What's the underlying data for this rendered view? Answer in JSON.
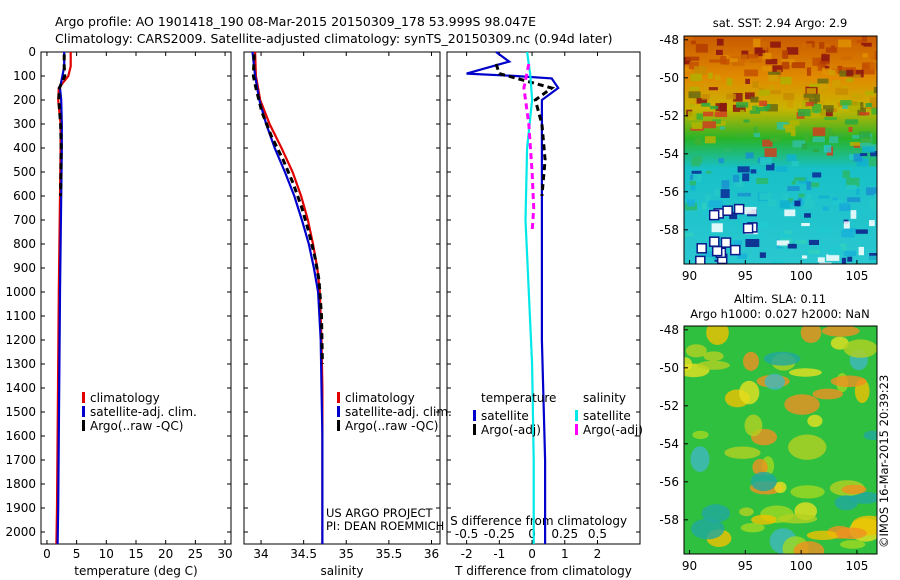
{
  "header": {
    "line1": "Argo profile: AO 1901418_190 08-Mar-2015 20150309_178 53.999S 98.047E",
    "line2": "Climatology: CARS2009. Satellite-adjusted climatology: synTS_20150309.nc (0.94d later)"
  },
  "colors": {
    "red": "#e00000",
    "blue": "#0000cc",
    "black": "#000000",
    "cyan": "#00e8e8",
    "magenta": "#ff00ff"
  },
  "chart_data": [
    {
      "type": "line",
      "panel": "temperature",
      "xlabel": "temperature (deg C)",
      "xlim": [
        -1,
        31
      ],
      "ylim": [
        2050,
        0
      ],
      "xticks": [
        "0",
        "5",
        "10",
        "15",
        "20",
        "25",
        "30"
      ],
      "yticks": [
        "0",
        "100",
        "200",
        "300",
        "400",
        "500",
        "600",
        "700",
        "800",
        "900",
        "1000",
        "1100",
        "1200",
        "1300",
        "1400",
        "1500",
        "1600",
        "1700",
        "1800",
        "1900",
        "2000"
      ],
      "legend": [
        "climatology",
        "satellite-adj. clim.",
        "Argo(..raw -QC)"
      ],
      "series": [
        {
          "name": "climatology",
          "color": "red",
          "x": [
            4.0,
            4.0,
            3.6,
            2.0,
            1.9,
            2.1,
            2.3,
            2.3,
            2.2,
            2.1,
            2.0,
            1.9,
            1.8,
            1.7,
            1.6
          ],
          "y": [
            0,
            60,
            100,
            150,
            200,
            250,
            300,
            400,
            600,
            800,
            1000,
            1300,
            1600,
            1900,
            2050
          ]
        },
        {
          "name": "satellite-adj. clim.",
          "color": "blue",
          "x": [
            2.9,
            2.9,
            2.6,
            2.2,
            2.4,
            2.5,
            2.5,
            2.4,
            2.3,
            2.2,
            2.1,
            2.0,
            1.9,
            1.8
          ],
          "y": [
            0,
            60,
            100,
            150,
            200,
            300,
            400,
            600,
            800,
            1000,
            1300,
            1600,
            1900,
            2050
          ]
        },
        {
          "name": "Argo(..raw -QC)",
          "color": "black",
          "x": [
            2.9,
            2.9,
            3.0,
            2.1,
            2.0,
            2.3,
            2.4,
            2.3
          ],
          "y": [
            10,
            60,
            100,
            150,
            200,
            300,
            400,
            600
          ]
        }
      ]
    },
    {
      "type": "line",
      "panel": "salinity",
      "xlabel": "salinity",
      "xlim": [
        33.8,
        36.1
      ],
      "ylim": [
        2050,
        0
      ],
      "xticks": [
        "34",
        "34.5",
        "35",
        "35.5",
        "36"
      ],
      "legend": [
        "climatology",
        "satellite-adj. clim.",
        "Argo(..raw -QC)"
      ],
      "annotations": [
        "US ARGO PROJECT",
        "PI: DEAN ROEMMICH"
      ],
      "series": [
        {
          "name": "climatology",
          "color": "red",
          "x": [
            33.93,
            33.94,
            33.99,
            34.1,
            34.24,
            34.37,
            34.47,
            34.55,
            34.61,
            34.66,
            34.69,
            34.71,
            34.72,
            34.72,
            34.72,
            34.72
          ],
          "y": [
            0,
            100,
            200,
            300,
            400,
            500,
            600,
            700,
            800,
            900,
            1000,
            1200,
            1400,
            1600,
            1800,
            2050
          ]
        },
        {
          "name": "satellite-adj. clim.",
          "color": "blue",
          "x": [
            33.9,
            33.93,
            33.98,
            34.06,
            34.16,
            34.28,
            34.39,
            34.48,
            34.56,
            34.62,
            34.67,
            34.7,
            34.71,
            34.72,
            34.72,
            34.72
          ],
          "y": [
            0,
            100,
            200,
            300,
            400,
            500,
            600,
            700,
            800,
            900,
            1000,
            1200,
            1400,
            1600,
            1800,
            2050
          ]
        },
        {
          "name": "Argo(..raw -QC)",
          "color": "black",
          "x": [
            33.92,
            33.91,
            33.94,
            34.01,
            34.12,
            34.26,
            34.38,
            34.48,
            34.56,
            34.63,
            34.68,
            34.71,
            34.72
          ],
          "y": [
            10,
            100,
            150,
            250,
            350,
            450,
            550,
            650,
            750,
            850,
            950,
            1100,
            1300
          ]
        }
      ]
    },
    {
      "type": "line",
      "panel": "difference",
      "xlabel": "T difference from climatology",
      "x2label": "S difference from climatology",
      "xlim": [
        -2.6,
        3.3
      ],
      "ylim": [
        2050,
        0
      ],
      "xticks": [
        "-2",
        "-1",
        "0",
        "1",
        "2"
      ],
      "x2ticks": [
        "-0.5",
        "-0.25",
        "0",
        "0.25",
        "0.5"
      ],
      "legend_titles": [
        "temperature",
        "salinity"
      ],
      "legend": [
        "satellite",
        "Argo(-adj)",
        "satellite",
        "Argo(-adj)"
      ],
      "series": [
        {
          "name": "satellite",
          "group": "temperature",
          "color": "blue",
          "x": [
            -1.1,
            -0.7,
            -2.0,
            -0.5,
            0.6,
            0.8,
            0.3,
            0.3,
            0.3,
            0.3,
            0.3,
            0.4,
            0.4
          ],
          "y": [
            0,
            40,
            90,
            100,
            110,
            150,
            200,
            300,
            500,
            800,
            1200,
            1700,
            2050
          ]
        },
        {
          "name": "Argo(-adj)",
          "group": "temperature",
          "color": "black",
          "x": [
            -1.1,
            -1.0,
            0.6,
            0.1,
            0.3,
            0.4,
            0.3
          ],
          "y": [
            50,
            90,
            150,
            200,
            300,
            450,
            600
          ]
        },
        {
          "name": "satellite",
          "group": "salinity",
          "color": "cyan",
          "x": [
            -0.15,
            -0.05,
            0.0,
            -0.15,
            -0.2,
            -0.1,
            0.0,
            0.05,
            0.05
          ],
          "y": [
            0,
            100,
            200,
            400,
            700,
            1000,
            1300,
            1700,
            2050
          ]
        },
        {
          "name": "Argo(-adj)",
          "group": "salinity",
          "color": "magenta",
          "x": [
            -0.1,
            -0.25,
            -0.1,
            0.0,
            0.05,
            0.0
          ],
          "y": [
            50,
            150,
            300,
            500,
            650,
            750
          ]
        }
      ]
    },
    {
      "type": "heatmap",
      "panel": "sst-map",
      "title": "sat. SST: 2.94 Argo: 2.9",
      "xticks": [
        "90",
        "95",
        "100",
        "105"
      ],
      "yticks": [
        "-48",
        "-50",
        "-52",
        "-54",
        "-56",
        "-58"
      ],
      "xlim": [
        89.5,
        106.8
      ],
      "ylim": [
        -59.8,
        -47.8
      ]
    },
    {
      "type": "heatmap",
      "panel": "sla-map",
      "title": "Altim. SLA: 0.11",
      "subtitle": "Argo h1000: 0.027 h2000: NaN",
      "xticks": [
        "90",
        "95",
        "100",
        "105"
      ],
      "yticks": [
        "-48",
        "-50",
        "-52",
        "-54",
        "-56",
        "-58"
      ],
      "xlim": [
        89.5,
        106.8
      ],
      "ylim": [
        -59.8,
        -47.8
      ]
    }
  ],
  "footer": {
    "stamp": "©IMOS 16-Mar-2015 20:39:23"
  }
}
